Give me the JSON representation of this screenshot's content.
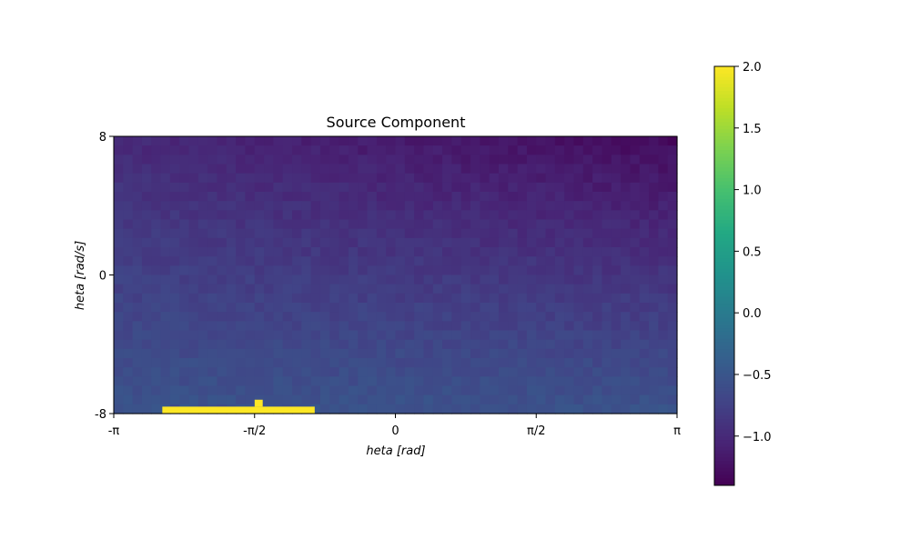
{
  "chart_data": {
    "type": "heatmap",
    "title": "Source Component",
    "xlabel": "heta [rad]",
    "ylabel": "heta [rad/s]",
    "xlim": [
      -3.14159,
      3.14159
    ],
    "ylim": [
      -8,
      8
    ],
    "x_ticks": [
      {
        "value": -3.14159,
        "label": "-π"
      },
      {
        "value": -1.5708,
        "label": "-π/2"
      },
      {
        "value": 0,
        "label": "0"
      },
      {
        "value": 1.5708,
        "label": "π/2"
      },
      {
        "value": 3.14159,
        "label": "π"
      }
    ],
    "y_ticks": [
      {
        "value": -8,
        "label": "-8"
      },
      {
        "value": 0,
        "label": "0"
      },
      {
        "value": 8,
        "label": "8"
      }
    ],
    "grid": {
      "nx": 60,
      "ny": 30
    },
    "field": {
      "description": "noisy smooth gradient, lowest values toward top-right, higher toward bottom-left",
      "top_right": -1.3,
      "top_left": -1.0,
      "bottom_left": -0.55,
      "bottom_right": -0.55,
      "noise": 0.07
    },
    "highlight_regions": [
      {
        "x_range": [
          -2.6,
          -0.9
        ],
        "y_range": [
          -8,
          -7.6
        ],
        "value": 2.0
      },
      {
        "x_range": [
          -1.57,
          -1.48
        ],
        "y_range": [
          -7.6,
          -7.2
        ],
        "value": 2.0
      }
    ],
    "colormap": "viridis",
    "colorbar": {
      "vmin": -1.4,
      "vmax": 2.0,
      "ticks": [
        {
          "value": 2.0,
          "label": "2.0"
        },
        {
          "value": 1.5,
          "label": "1.5"
        },
        {
          "value": 1.0,
          "label": "1.0"
        },
        {
          "value": 0.5,
          "label": "0.5"
        },
        {
          "value": 0.0,
          "label": "0.0"
        },
        {
          "value": -0.5,
          "label": "−0.5"
        },
        {
          "value": -1.0,
          "label": "−1.0"
        }
      ]
    }
  }
}
